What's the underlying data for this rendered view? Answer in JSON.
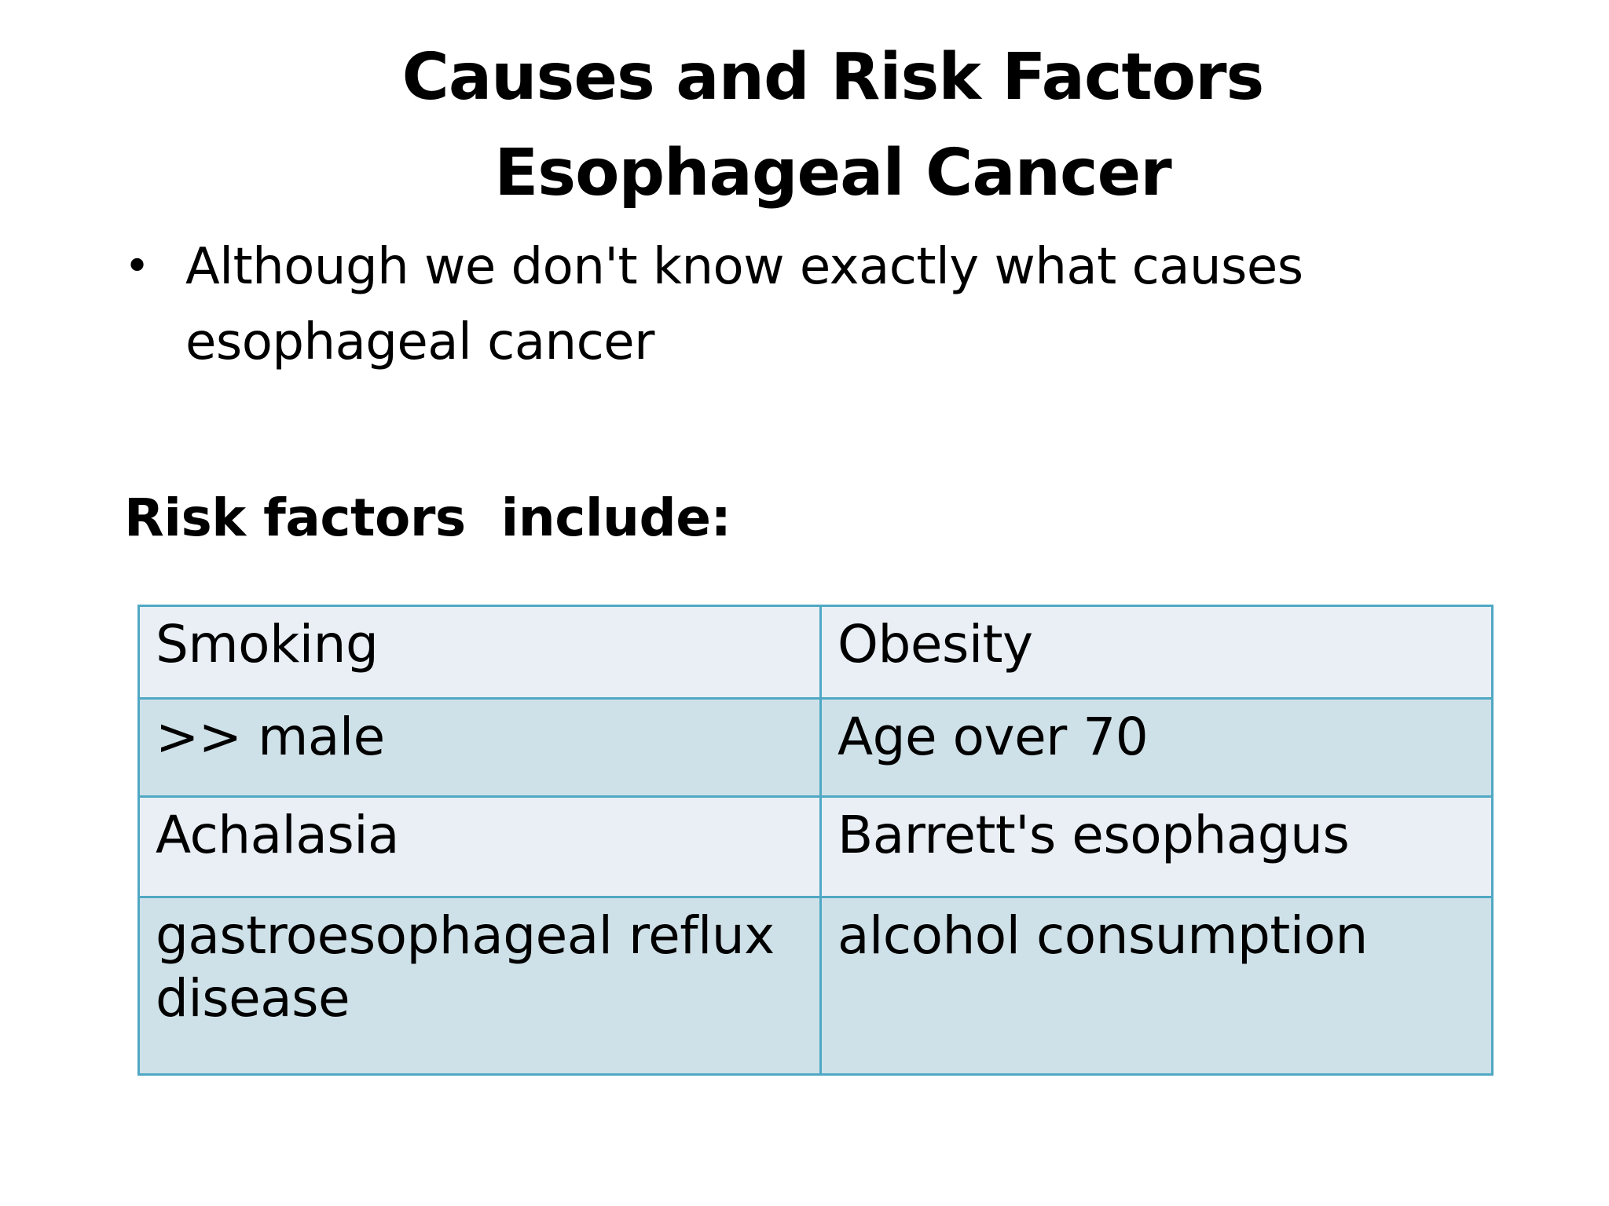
{
  "slide": {
    "title_line1": "Causes and Risk Factors",
    "title_line2": "Esophageal Cancer",
    "bullet": "Although we don't know exactly what causes esophageal cancer",
    "bullet_symbol": "•",
    "subheading": "Risk factors  include:",
    "table": {
      "border_color": "#4fa8c4",
      "row_colors": [
        "#e9eff5",
        "#cfe1e8"
      ],
      "rows": [
        [
          "Smoking",
          "Obesity"
        ],
        [
          ">> male",
          "Age over 70"
        ],
        [
          "Achalasia",
          "Barrett's esophagus"
        ],
        [
          "gastroesophageal reflux disease",
          "alcohol consumption"
        ]
      ]
    }
  }
}
